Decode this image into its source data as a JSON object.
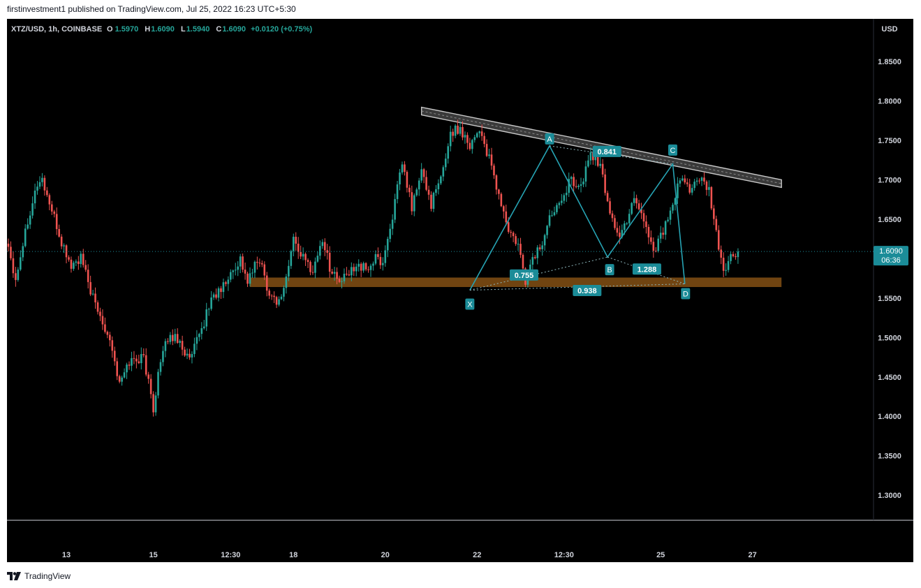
{
  "attribution": "firstinvestment1 published on TradingView.com, Jul 25, 2022 16:23 UTC+5:30",
  "footer": {
    "brand": "TradingView",
    "logo_icon": "tradingview-logo-icon"
  },
  "colors": {
    "up": "#26a69a",
    "up_dark": "#1a7d77",
    "down": "#ef5350",
    "down_dark": "#b83a3a",
    "pattern": "#26a3b3",
    "label_fill": "#1b8c98",
    "zone": "#7a4a12",
    "channel_border": "#c8c8c8",
    "channel_fill": "#3a3a3a",
    "axis_text": "#d1d4dc",
    "price_line": "#1e8fa0"
  },
  "header": {
    "symbol": "XTZ/USD, 1h, COINBASE",
    "o_key": "O",
    "o_val": "1.5970",
    "h_key": "H",
    "h_val": "1.6090",
    "l_key": "L",
    "l_val": "1.5940",
    "c_key": "C",
    "c_val": "1.6090",
    "change": "+0.0120 (+0.75%)"
  },
  "axis": {
    "currency": "USD",
    "last_price": "1.6090",
    "countdown": "06:36"
  },
  "chart_data": {
    "type": "candlestick",
    "title": "XTZ/USD, 1h, COINBASE",
    "ylabel": "USD",
    "ylim": [
      1.255,
      1.88
    ],
    "y_ticks": [
      "1.8500",
      "1.8000",
      "1.7500",
      "1.7000",
      "1.6500",
      "1.6000",
      "1.5500",
      "1.5000",
      "1.4500",
      "1.4000",
      "1.3500",
      "1.3000"
    ],
    "x_ticks": [
      "13",
      "15",
      "12:30",
      "18",
      "20",
      "22",
      "12:30",
      "25",
      "27"
    ],
    "x_tick_index": [
      24,
      60,
      92,
      118,
      156,
      194,
      230,
      270,
      308
    ],
    "anchors": [
      {
        "i": 0,
        "p": 1.615
      },
      {
        "i": 3,
        "p": 1.575
      },
      {
        "i": 8,
        "p": 1.65
      },
      {
        "i": 12,
        "p": 1.695
      },
      {
        "i": 14,
        "p": 1.7
      },
      {
        "i": 18,
        "p": 1.66
      },
      {
        "i": 22,
        "p": 1.62
      },
      {
        "i": 26,
        "p": 1.59
      },
      {
        "i": 30,
        "p": 1.6
      },
      {
        "i": 36,
        "p": 1.54
      },
      {
        "i": 42,
        "p": 1.5
      },
      {
        "i": 46,
        "p": 1.44
      },
      {
        "i": 50,
        "p": 1.47
      },
      {
        "i": 56,
        "p": 1.475
      },
      {
        "i": 60,
        "p": 1.41
      },
      {
        "i": 62,
        "p": 1.455
      },
      {
        "i": 66,
        "p": 1.5
      },
      {
        "i": 70,
        "p": 1.5
      },
      {
        "i": 75,
        "p": 1.47
      },
      {
        "i": 80,
        "p": 1.51
      },
      {
        "i": 84,
        "p": 1.55
      },
      {
        "i": 88,
        "p": 1.56
      },
      {
        "i": 92,
        "p": 1.58
      },
      {
        "i": 96,
        "p": 1.6
      },
      {
        "i": 99,
        "p": 1.57
      },
      {
        "i": 102,
        "p": 1.59
      },
      {
        "i": 104,
        "p": 1.6
      },
      {
        "i": 108,
        "p": 1.555
      },
      {
        "i": 112,
        "p": 1.545
      },
      {
        "i": 115,
        "p": 1.575
      },
      {
        "i": 118,
        "p": 1.625
      },
      {
        "i": 122,
        "p": 1.6
      },
      {
        "i": 126,
        "p": 1.585
      },
      {
        "i": 130,
        "p": 1.625
      },
      {
        "i": 133,
        "p": 1.59
      },
      {
        "i": 137,
        "p": 1.57
      },
      {
        "i": 141,
        "p": 1.58
      },
      {
        "i": 144,
        "p": 1.595
      },
      {
        "i": 148,
        "p": 1.585
      },
      {
        "i": 152,
        "p": 1.6
      },
      {
        "i": 155,
        "p": 1.595
      },
      {
        "i": 159,
        "p": 1.655
      },
      {
        "i": 163,
        "p": 1.72
      },
      {
        "i": 167,
        "p": 1.665
      },
      {
        "i": 171,
        "p": 1.71
      },
      {
        "i": 175,
        "p": 1.67
      },
      {
        "i": 179,
        "p": 1.7
      },
      {
        "i": 183,
        "p": 1.76
      },
      {
        "i": 187,
        "p": 1.765
      },
      {
        "i": 191,
        "p": 1.745
      },
      {
        "i": 195,
        "p": 1.765
      },
      {
        "i": 199,
        "p": 1.725
      },
      {
        "i": 203,
        "p": 1.68
      },
      {
        "i": 207,
        "p": 1.635
      },
      {
        "i": 211,
        "p": 1.615
      },
      {
        "i": 214,
        "p": 1.57
      },
      {
        "i": 217,
        "p": 1.6
      },
      {
        "i": 221,
        "p": 1.62
      },
      {
        "i": 225,
        "p": 1.66
      },
      {
        "i": 229,
        "p": 1.68
      },
      {
        "i": 233,
        "p": 1.7
      },
      {
        "i": 237,
        "p": 1.69
      },
      {
        "i": 241,
        "p": 1.735
      },
      {
        "i": 245,
        "p": 1.715
      },
      {
        "i": 249,
        "p": 1.66
      },
      {
        "i": 253,
        "p": 1.625
      },
      {
        "i": 256,
        "p": 1.65
      },
      {
        "i": 259,
        "p": 1.68
      },
      {
        "i": 263,
        "p": 1.65
      },
      {
        "i": 267,
        "p": 1.61
      },
      {
        "i": 270,
        "p": 1.63
      },
      {
        "i": 274,
        "p": 1.655
      },
      {
        "i": 278,
        "p": 1.7
      },
      {
        "i": 282,
        "p": 1.69
      },
      {
        "i": 286,
        "p": 1.7
      },
      {
        "i": 290,
        "p": 1.685
      },
      {
        "i": 293,
        "p": 1.63
      },
      {
        "i": 296,
        "p": 1.585
      },
      {
        "i": 299,
        "p": 1.6
      },
      {
        "i": 302,
        "p": 1.609
      }
    ],
    "candle_count": 303,
    "last_price": 1.609,
    "support_zone": {
      "i0": 100,
      "i1": 320,
      "y_low": 1.564,
      "y_high": 1.576
    },
    "channel": {
      "i0": 171,
      "p0": 1.792,
      "i1": 320,
      "p1": 1.7
    },
    "pattern_points": [
      {
        "label": "X",
        "i": 191,
        "p": 1.56
      },
      {
        "label": "A",
        "i": 224,
        "p": 1.743
      },
      {
        "label": "B",
        "i": 248,
        "p": 1.602
      },
      {
        "label": "C",
        "i": 275,
        "p": 1.72
      },
      {
        "label": "D",
        "i": 280,
        "p": 1.568
      }
    ],
    "ratios": [
      {
        "value": "0.755",
        "between": [
          "X",
          "B"
        ]
      },
      {
        "value": "0.841",
        "between": [
          "A",
          "C"
        ]
      },
      {
        "value": "1.288",
        "between": [
          "B",
          "D"
        ]
      },
      {
        "value": "0.938",
        "between": [
          "X",
          "D"
        ]
      }
    ]
  }
}
